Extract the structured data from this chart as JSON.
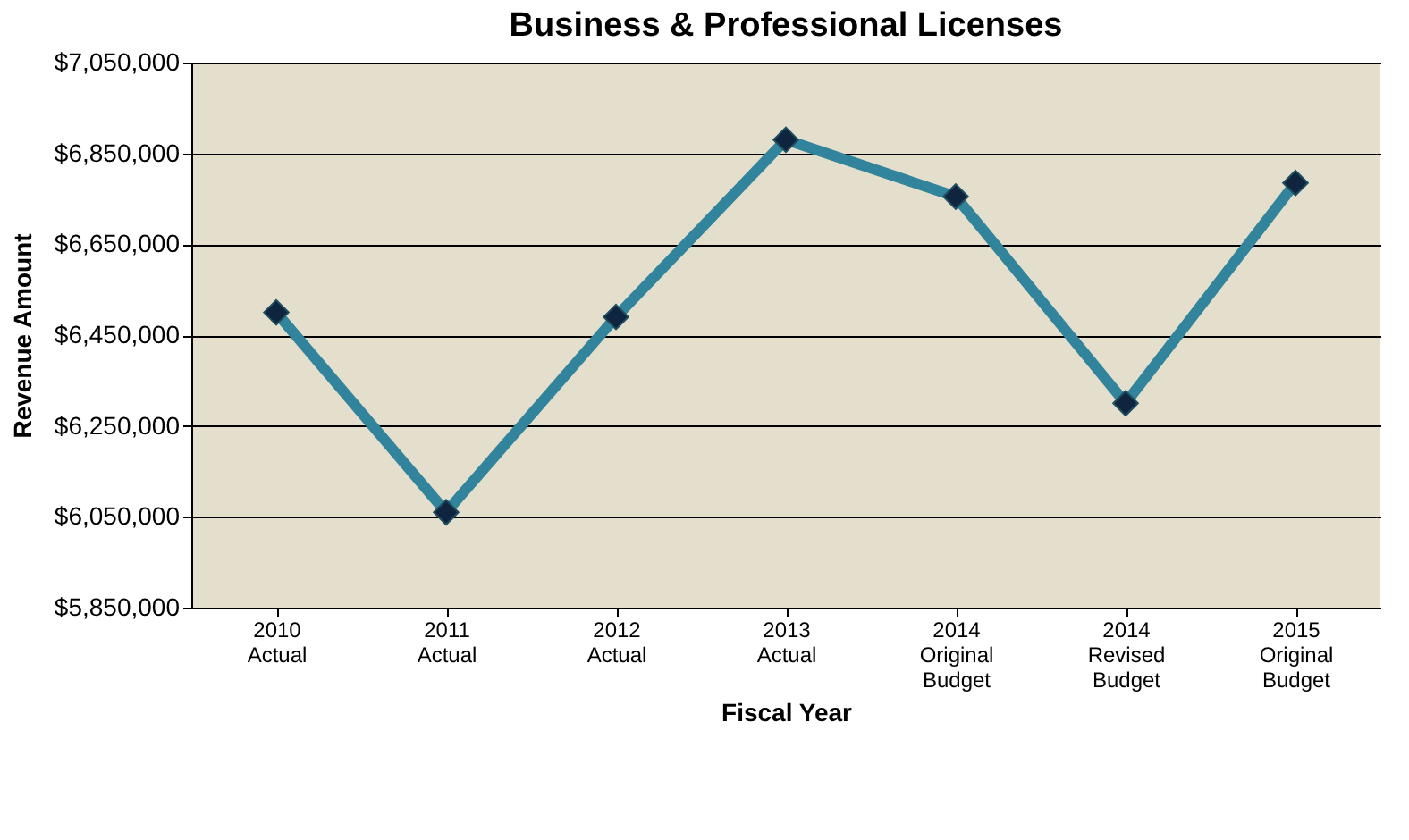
{
  "chart_data": {
    "type": "line",
    "title": "Business & Professional Licenses",
    "xlabel": "Fiscal Year",
    "ylabel": "Revenue Amount",
    "categories": [
      "2010\nActual",
      "2011\nActual",
      "2012\nActual",
      "2013\nActual",
      "2014\nOriginal\nBudget",
      "2014\nRevised\nBudget",
      "2015\nOriginal\nBudget"
    ],
    "series": [
      {
        "color": "#31849b",
        "values": [
          6500000,
          6060000,
          6490000,
          6880000,
          6755000,
          6300000,
          6785000
        ]
      }
    ],
    "ylim": [
      5850000,
      7050000
    ],
    "yticks": [
      {
        "value": 5850000,
        "label": "$5,850,000"
      },
      {
        "value": 6050000,
        "label": "$6,050,000"
      },
      {
        "value": 6250000,
        "label": "$6,250,000"
      },
      {
        "value": 6450000,
        "label": "$6,450,000"
      },
      {
        "value": 6650000,
        "label": "$6,650,000"
      },
      {
        "value": 6850000,
        "label": "$6,850,000"
      },
      {
        "value": 7050000,
        "label": "$7,050,000"
      }
    ],
    "grid": "y",
    "marker": "diamond",
    "line_style": "solid"
  }
}
